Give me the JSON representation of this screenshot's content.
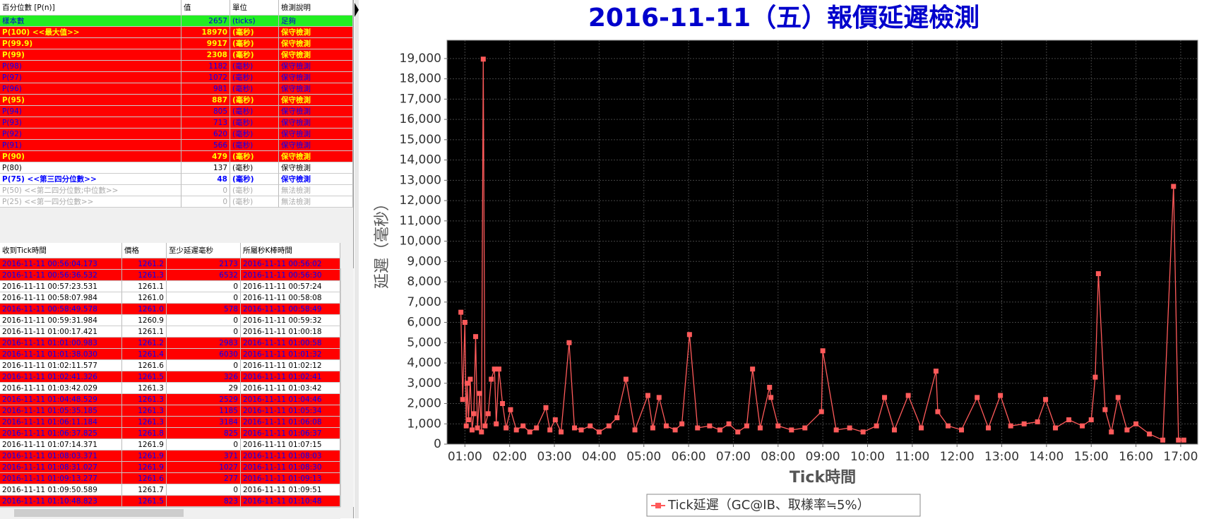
{
  "percentile_table": {
    "columns": [
      "百分位數 [P(n)]",
      "值",
      "單位",
      "檢測說明"
    ],
    "rows": [
      {
        "cells": [
          "樣本數",
          "2657",
          "(ticks)",
          "足夠"
        ],
        "bg": "#22ee22",
        "fg": "#0000cc",
        "bold": false
      },
      {
        "cells": [
          "P(100)  <<最大值>>",
          "18970",
          "(毫秒)",
          "保守檢測"
        ],
        "bg": "#ff0000",
        "fg": "#ffff00",
        "bold": true
      },
      {
        "cells": [
          "P(99.9)",
          "9917",
          "(毫秒)",
          "保守檢測"
        ],
        "bg": "#ff0000",
        "fg": "#ffff00",
        "bold": true
      },
      {
        "cells": [
          "P(99)",
          "2308",
          "(毫秒)",
          "保守檢測"
        ],
        "bg": "#ff0000",
        "fg": "#ffff00",
        "bold": true
      },
      {
        "cells": [
          "P(98)",
          "1182",
          "(毫秒)",
          "保守檢測"
        ],
        "bg": "#ff0000",
        "fg": "#0000ff",
        "bold": false
      },
      {
        "cells": [
          "P(97)",
          "1072",
          "(毫秒)",
          "保守檢測"
        ],
        "bg": "#ff0000",
        "fg": "#0000ff",
        "bold": false
      },
      {
        "cells": [
          "P(96)",
          "981",
          "(毫秒)",
          "保守檢測"
        ],
        "bg": "#ff0000",
        "fg": "#0000ff",
        "bold": false
      },
      {
        "cells": [
          "P(95)",
          "887",
          "(毫秒)",
          "保守檢測"
        ],
        "bg": "#ff0000",
        "fg": "#ffff00",
        "bold": true
      },
      {
        "cells": [
          "P(94)",
          "805",
          "(毫秒)",
          "保守檢測"
        ],
        "bg": "#ff0000",
        "fg": "#0000ff",
        "bold": false
      },
      {
        "cells": [
          "P(93)",
          "713",
          "(毫秒)",
          "保守檢測"
        ],
        "bg": "#ff0000",
        "fg": "#0000ff",
        "bold": false
      },
      {
        "cells": [
          "P(92)",
          "620",
          "(毫秒)",
          "保守檢測"
        ],
        "bg": "#ff0000",
        "fg": "#0000ff",
        "bold": false
      },
      {
        "cells": [
          "P(91)",
          "566",
          "(毫秒)",
          "保守檢測"
        ],
        "bg": "#ff0000",
        "fg": "#0000ff",
        "bold": false
      },
      {
        "cells": [
          "P(90)",
          "479",
          "(毫秒)",
          "保守檢測"
        ],
        "bg": "#ff0000",
        "fg": "#ffff00",
        "bold": true
      },
      {
        "cells": [
          "P(80)",
          "137",
          "(毫秒)",
          "保守檢測"
        ],
        "bg": "#ffffff",
        "fg": "#000000",
        "bold": false
      },
      {
        "cells": [
          "P(75)  <<第三四分位數>>",
          "48",
          "(毫秒)",
          "保守檢測"
        ],
        "bg": "#ffffff",
        "fg": "#0000ff",
        "bold": true
      },
      {
        "cells": [
          "P(50)  <<第二四分位數;中位數>>",
          "0",
          "(毫秒)",
          "無法檢測"
        ],
        "bg": "#ffffff",
        "fg": "#aaaaaa",
        "bold": false
      },
      {
        "cells": [
          "P(25)  <<第一四分位數>>",
          "0",
          "(毫秒)",
          "無法檢測"
        ],
        "bg": "#ffffff",
        "fg": "#aaaaaa",
        "bold": false
      }
    ]
  },
  "tick_table": {
    "columns": [
      "收到Tick時間",
      "價格",
      "至少延遲毫秒",
      "所屬秒K棒時間"
    ],
    "rows": [
      {
        "cells": [
          "2016-11-11 00:56:04.173",
          "1261.2",
          "2173",
          "2016-11-11 00:56:02"
        ],
        "bg": "#ff0000",
        "fg": "#0000ff"
      },
      {
        "cells": [
          "2016-11-11 00:56:36.532",
          "1261.3",
          "6532",
          "2016-11-11 00:56:30"
        ],
        "bg": "#ff0000",
        "fg": "#0000ff"
      },
      {
        "cells": [
          "2016-11-11 00:57:23.531",
          "1261.1",
          "0",
          "2016-11-11 00:57:24"
        ],
        "bg": "#ffffff",
        "fg": "#000000"
      },
      {
        "cells": [
          "2016-11-11 00:58:07.984",
          "1261.0",
          "0",
          "2016-11-11 00:58:08"
        ],
        "bg": "#ffffff",
        "fg": "#000000"
      },
      {
        "cells": [
          "2016-11-11 00:58:49.578",
          "1261.0",
          "578",
          "2016-11-11 00:58:49"
        ],
        "bg": "#ff0000",
        "fg": "#0000ff"
      },
      {
        "cells": [
          "2016-11-11 00:59:31.984",
          "1260.9",
          "0",
          "2016-11-11 00:59:32"
        ],
        "bg": "#ffffff",
        "fg": "#000000"
      },
      {
        "cells": [
          "2016-11-11 01:00:17.421",
          "1261.1",
          "0",
          "2016-11-11 01:00:18"
        ],
        "bg": "#ffffff",
        "fg": "#000000"
      },
      {
        "cells": [
          "2016-11-11 01:01:00.983",
          "1261.2",
          "2983",
          "2016-11-11 01:00:58"
        ],
        "bg": "#ff0000",
        "fg": "#0000ff"
      },
      {
        "cells": [
          "2016-11-11 01:01:38.030",
          "1261.4",
          "6030",
          "2016-11-11 01:01:32"
        ],
        "bg": "#ff0000",
        "fg": "#0000ff"
      },
      {
        "cells": [
          "2016-11-11 01:02:11.577",
          "1261.6",
          "0",
          "2016-11-11 01:02:12"
        ],
        "bg": "#ffffff",
        "fg": "#000000"
      },
      {
        "cells": [
          "2016-11-11 01:02:41.326",
          "1261.5",
          "326",
          "2016-11-11 01:02:41"
        ],
        "bg": "#ff0000",
        "fg": "#0000ff"
      },
      {
        "cells": [
          "2016-11-11 01:03:42.029",
          "1261.3",
          "29",
          "2016-11-11 01:03:42"
        ],
        "bg": "#ffffff",
        "fg": "#000000"
      },
      {
        "cells": [
          "2016-11-11 01:04:48.529",
          "1261.3",
          "2529",
          "2016-11-11 01:04:46"
        ],
        "bg": "#ff0000",
        "fg": "#0000ff"
      },
      {
        "cells": [
          "2016-11-11 01:05:35.185",
          "1261.3",
          "1185",
          "2016-11-11 01:05:34"
        ],
        "bg": "#ff0000",
        "fg": "#0000ff"
      },
      {
        "cells": [
          "2016-11-11 01:06:11.184",
          "1261.3",
          "3184",
          "2016-11-11 01:06:08"
        ],
        "bg": "#ff0000",
        "fg": "#0000ff"
      },
      {
        "cells": [
          "2016-11-11 01:06:37.825",
          "1261.8",
          "825",
          "2016-11-11 01:06:37"
        ],
        "bg": "#ff0000",
        "fg": "#0000ff"
      },
      {
        "cells": [
          "2016-11-11 01:07:14.371",
          "1261.9",
          "0",
          "2016-11-11 01:07:15"
        ],
        "bg": "#ffffff",
        "fg": "#000000"
      },
      {
        "cells": [
          "2016-11-11 01:08:03.371",
          "1261.9",
          "371",
          "2016-11-11 01:08:03"
        ],
        "bg": "#ff0000",
        "fg": "#0000ff"
      },
      {
        "cells": [
          "2016-11-11 01:08:31.027",
          "1261.9",
          "1027",
          "2016-11-11 01:08:30"
        ],
        "bg": "#ff0000",
        "fg": "#0000ff"
      },
      {
        "cells": [
          "2016-11-11 01:09:13.277",
          "1261.6",
          "277",
          "2016-11-11 01:09:13"
        ],
        "bg": "#ff0000",
        "fg": "#0000ff"
      },
      {
        "cells": [
          "2016-11-11 01:09:50.589",
          "1261.7",
          "0",
          "2016-11-11 01:09:51"
        ],
        "bg": "#ffffff",
        "fg": "#000000"
      },
      {
        "cells": [
          "2016-11-11 01:10:48.823",
          "1261.5",
          "823",
          "2016-11-11 01:10:48"
        ],
        "bg": "#ff0000",
        "fg": "#0000ff"
      }
    ]
  },
  "chart_data": {
    "type": "line",
    "title": "2016-11-11（五）報價延遲檢測",
    "x_label": "Tick時間",
    "y_label": "延遲（毫秒）",
    "xlim": [
      0.6,
      17.38
    ],
    "ylim": [
      0,
      19900
    ],
    "xticks": [
      {
        "value": 1,
        "label": "01:00"
      },
      {
        "value": 2,
        "label": "02:00"
      },
      {
        "value": 3,
        "label": "03:00"
      },
      {
        "value": 4,
        "label": "04:00"
      },
      {
        "value": 5,
        "label": "05:00"
      },
      {
        "value": 6,
        "label": "06:00"
      },
      {
        "value": 7,
        "label": "07:00"
      },
      {
        "value": 8,
        "label": "08:00"
      },
      {
        "value": 9,
        "label": "09:00"
      },
      {
        "value": 10,
        "label": "10:00"
      },
      {
        "value": 11,
        "label": "11:00"
      },
      {
        "value": 12,
        "label": "12:00"
      },
      {
        "value": 13,
        "label": "13:00"
      },
      {
        "value": 14,
        "label": "14:00"
      },
      {
        "value": 15,
        "label": "15:00"
      },
      {
        "value": 16,
        "label": "16:00"
      },
      {
        "value": 17,
        "label": "17:00"
      }
    ],
    "yticks": [
      0,
      {
        "value": 1000,
        "label": "1,000"
      },
      {
        "value": 2000,
        "label": "2,000"
      },
      {
        "value": 3000,
        "label": "3,000"
      },
      {
        "value": 4000,
        "label": "4,000"
      },
      {
        "value": 5000,
        "label": "5,000"
      },
      {
        "value": 6000,
        "label": "6,000"
      },
      {
        "value": 7000,
        "label": "7,000"
      },
      {
        "value": 8000,
        "label": "8,000"
      },
      {
        "value": 9000,
        "label": "9,000"
      },
      {
        "value": 10000,
        "label": "10,000"
      },
      {
        "value": 11000,
        "label": "11,000"
      },
      {
        "value": 12000,
        "label": "12,000"
      },
      {
        "value": 13000,
        "label": "13,000"
      },
      {
        "value": 14000,
        "label": "14,000"
      },
      {
        "value": 15000,
        "label": "15,000"
      },
      {
        "value": 16000,
        "label": "16,000"
      },
      {
        "value": 17000,
        "label": "17,000"
      },
      {
        "value": 18000,
        "label": "18,000"
      },
      {
        "value": 19000,
        "label": "19,000"
      }
    ],
    "grid": true,
    "x": [
      0.91,
      0.95,
      1.0,
      1.03,
      1.05,
      1.08,
      1.12,
      1.16,
      1.2,
      1.24,
      1.28,
      1.33,
      1.37,
      1.41,
      1.45,
      1.52,
      1.59,
      1.66,
      1.7,
      1.76,
      1.84,
      1.92,
      2.02,
      2.15,
      2.3,
      2.45,
      2.6,
      2.81,
      2.9,
      3.02,
      3.15,
      3.33,
      3.45,
      3.6,
      3.8,
      4.0,
      4.22,
      4.4,
      4.6,
      4.8,
      5.09,
      5.2,
      5.34,
      5.5,
      5.7,
      5.85,
      6.02,
      6.2,
      6.47,
      6.7,
      6.9,
      7.1,
      7.3,
      7.43,
      7.6,
      7.81,
      7.84,
      8.0,
      8.3,
      8.6,
      8.97,
      9.0,
      9.3,
      9.6,
      9.9,
      10.2,
      10.38,
      10.6,
      10.91,
      11.2,
      11.53,
      11.57,
      11.8,
      12.1,
      12.45,
      12.7,
      12.97,
      13.2,
      13.5,
      13.8,
      13.98,
      14.2,
      14.5,
      14.8,
      15.0,
      15.09,
      15.16,
      15.31,
      15.45,
      15.6,
      15.8,
      16.0,
      16.3,
      16.6,
      16.84,
      16.95,
      17.07
    ],
    "series": [
      {
        "name": "Tick延遲（GC@IB、取樣率≒5%）",
        "color": "#ff5a5a",
        "values": [
          6500,
          2200,
          6000,
          900,
          3000,
          1200,
          3200,
          700,
          1500,
          5300,
          800,
          2500,
          600,
          18970,
          900,
          1500,
          3200,
          3700,
          1000,
          3700,
          2000,
          800,
          1700,
          700,
          900,
          600,
          800,
          1800,
          700,
          1200,
          600,
          5000,
          800,
          700,
          900,
          600,
          900,
          1300,
          3200,
          700,
          2400,
          800,
          2300,
          900,
          700,
          1000,
          5400,
          800,
          900,
          700,
          1000,
          600,
          900,
          3700,
          800,
          2800,
          2300,
          900,
          700,
          800,
          1600,
          4600,
          700,
          800,
          600,
          900,
          2300,
          700,
          2400,
          800,
          3600,
          1600,
          900,
          700,
          2300,
          800,
          2400,
          900,
          1000,
          1100,
          2200,
          800,
          1200,
          900,
          1200,
          3300,
          8400,
          1700,
          600,
          2300,
          700,
          1000,
          500,
          200,
          12700,
          200,
          200
        ]
      }
    ]
  }
}
